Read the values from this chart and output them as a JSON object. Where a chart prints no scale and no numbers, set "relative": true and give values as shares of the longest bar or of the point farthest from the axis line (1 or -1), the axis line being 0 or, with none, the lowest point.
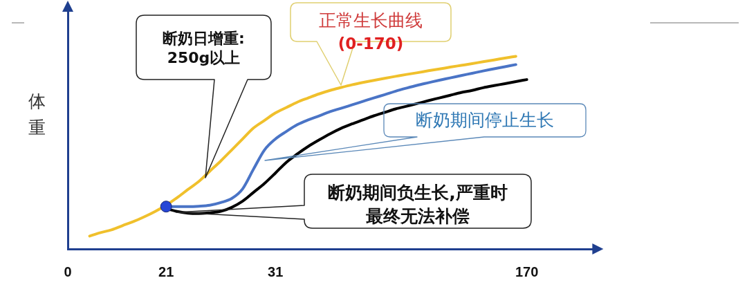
{
  "chart_data": {
    "type": "line",
    "relative": true,
    "tick_labels": "x",
    "ylabel": "体重",
    "categories": [
      "0",
      null,
      null,
      null,
      null,
      null,
      null,
      null,
      null,
      "21",
      null,
      null,
      null,
      null,
      null,
      null,
      null,
      null,
      null,
      "31",
      null,
      null,
      null,
      null,
      null,
      null,
      null,
      null,
      null,
      null,
      null,
      null,
      null,
      null,
      null,
      null,
      null,
      null,
      null,
      null,
      null,
      null,
      "170",
      null,
      null,
      null,
      null,
      null,
      null
    ],
    "series": [
      {
        "color": "#f0c02c",
        "values": [
          null,
          null,
          0.067,
          0.085,
          0.099,
          0.121,
          0.142,
          0.167,
          0.195,
          0.227,
          0.266,
          0.309,
          0.351,
          0.404,
          0.457,
          0.514,
          0.571,
          0.628,
          0.667,
          0.706,
          0.734,
          0.762,
          0.784,
          0.805,
          0.823,
          0.838,
          0.852,
          0.864,
          0.875,
          0.886,
          0.896,
          0.906,
          0.915,
          0.925,
          0.934,
          0.944,
          0.953,
          0.962,
          0.972,
          0.981,
          0.991,
          1,
          null,
          null,
          null,
          null,
          null,
          null,
          null
        ]
      },
      {
        "color": "#4a74c6",
        "values": [
          null,
          null,
          null,
          null,
          null,
          null,
          null,
          null,
          null,
          0.22,
          0.22,
          0.22,
          0.222,
          0.227,
          0.241,
          0.262,
          0.312,
          0.415,
          0.514,
          0.571,
          0.61,
          0.645,
          0.67,
          0.691,
          0.713,
          0.73,
          0.748,
          0.766,
          0.784,
          0.801,
          0.819,
          0.835,
          0.85,
          0.863,
          0.876,
          0.888,
          0.9,
          0.912,
          0.924,
          0.935,
          0.946,
          0.957,
          null,
          null,
          null,
          null,
          null,
          null,
          null
        ]
      },
      {
        "color": "#000000",
        "values": [
          null,
          null,
          null,
          null,
          null,
          null,
          null,
          null,
          null,
          0.209,
          0.195,
          0.186,
          0.184,
          0.188,
          0.195,
          0.216,
          0.248,
          0.294,
          0.34,
          0.394,
          0.45,
          0.493,
          0.532,
          0.566,
          0.598,
          0.626,
          0.649,
          0.67,
          0.691,
          0.709,
          0.727,
          0.741,
          0.755,
          0.77,
          0.784,
          0.798,
          0.812,
          0.823,
          0.837,
          0.848,
          0.858,
          0.869,
          0.879,
          null,
          null,
          null,
          null,
          null,
          null
        ]
      },
      {
        "type": "scatter",
        "marker": "circle",
        "color": "#2646d6",
        "values": [
          null,
          null,
          null,
          null,
          null,
          null,
          null,
          null,
          null,
          0.22,
          null,
          null,
          null,
          null,
          null,
          null,
          null,
          null,
          null,
          null,
          null,
          null,
          null,
          null,
          null,
          null,
          null,
          null,
          null,
          null,
          null,
          null,
          null,
          null,
          null,
          null,
          null,
          null,
          null,
          null,
          null,
          null,
          null,
          null,
          null,
          null,
          null,
          null,
          null
        ]
      }
    ],
    "annotations": [
      "断奶日增重:\n250g以上",
      "正常生长曲线\n(0-170)",
      "断奶期间停止生长",
      "断奶期间负生长,严重时最终无法补偿"
    ]
  }
}
